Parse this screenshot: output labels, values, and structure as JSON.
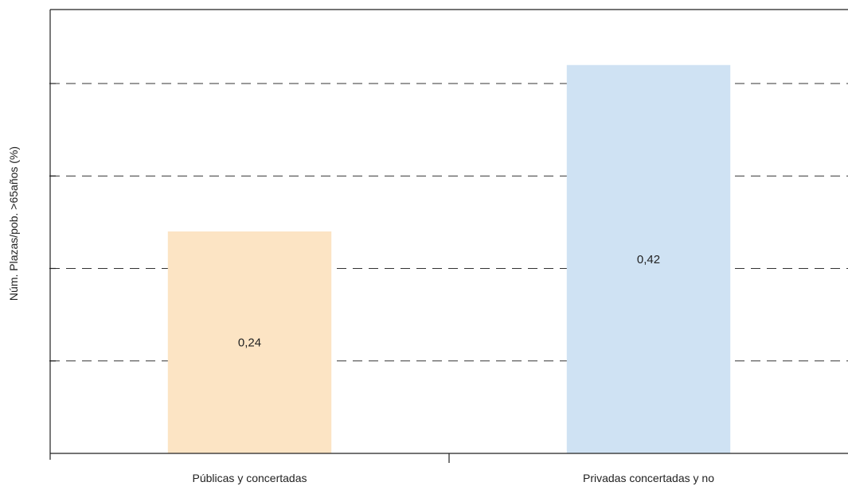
{
  "chart_data": {
    "type": "bar",
    "title": "",
    "xlabel": "",
    "ylabel": "Núm. Plazas/pob. >65años (%)",
    "categories": [
      "Públicas y concertadas",
      "Privadas concertadas y no"
    ],
    "values": [
      0.24,
      0.42
    ],
    "value_labels": [
      "0,24",
      "0,42"
    ],
    "ylim": [
      0,
      0.48
    ],
    "gridlines": [
      0.1,
      0.2,
      0.3,
      0.4
    ],
    "grid": true,
    "grid_style": "dashed",
    "legend": "none",
    "colors": [
      "#fce4c4",
      "#cfe2f3"
    ]
  }
}
